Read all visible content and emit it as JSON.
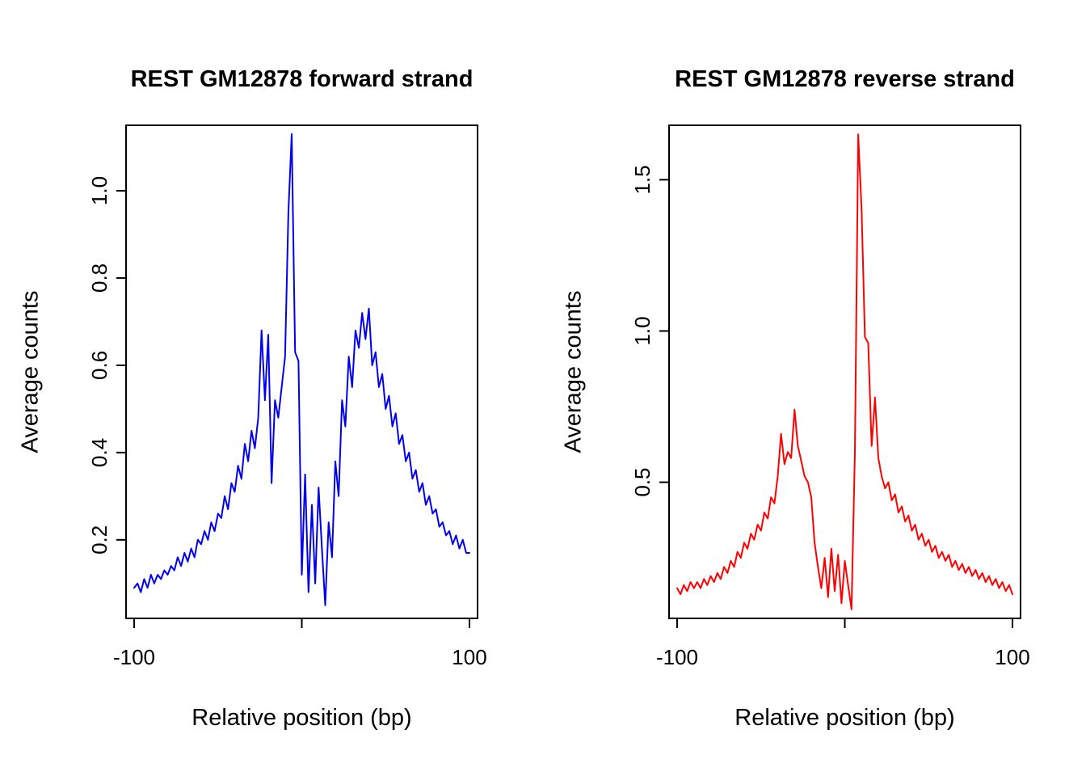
{
  "figure": {
    "background": "#ffffff",
    "axis_color": "#000000"
  },
  "chart_data": [
    {
      "type": "line",
      "title": "REST GM12878 forward strand",
      "xlabel": "Relative position (bp)",
      "ylabel": "Average counts",
      "color": "#0000EE",
      "line_width": 2,
      "xlim": [
        -100,
        100
      ],
      "ylim": [
        0.02,
        1.15
      ],
      "xticks": {
        "values": [
          -100,
          0,
          100
        ],
        "labels": [
          "-100",
          "",
          "100"
        ]
      },
      "yticks": {
        "values": [
          0.2,
          0.4,
          0.6,
          0.8,
          1.0
        ],
        "labels": [
          "0.2",
          "0.4",
          "0.6",
          "0.8",
          "1.0"
        ]
      },
      "grid": false,
      "x": [
        -100,
        -98,
        -96,
        -94,
        -92,
        -90,
        -88,
        -86,
        -84,
        -82,
        -80,
        -78,
        -76,
        -74,
        -72,
        -70,
        -68,
        -66,
        -64,
        -62,
        -60,
        -58,
        -56,
        -54,
        -52,
        -50,
        -48,
        -46,
        -44,
        -42,
        -40,
        -38,
        -36,
        -34,
        -32,
        -30,
        -28,
        -26,
        -24,
        -22,
        -20,
        -18,
        -16,
        -14,
        -12,
        -10,
        -8,
        -6,
        -4,
        -2,
        0,
        2,
        4,
        6,
        8,
        10,
        12,
        14,
        16,
        18,
        20,
        22,
        24,
        26,
        28,
        30,
        32,
        34,
        36,
        38,
        40,
        42,
        44,
        46,
        48,
        50,
        52,
        54,
        56,
        58,
        60,
        62,
        64,
        66,
        68,
        70,
        72,
        74,
        76,
        78,
        80,
        82,
        84,
        86,
        88,
        90,
        92,
        94,
        96,
        98,
        100
      ],
      "values": [
        0.09,
        0.1,
        0.08,
        0.11,
        0.09,
        0.12,
        0.1,
        0.12,
        0.11,
        0.13,
        0.12,
        0.14,
        0.13,
        0.16,
        0.14,
        0.17,
        0.15,
        0.18,
        0.16,
        0.2,
        0.19,
        0.22,
        0.2,
        0.24,
        0.22,
        0.26,
        0.25,
        0.3,
        0.27,
        0.33,
        0.31,
        0.37,
        0.34,
        0.42,
        0.38,
        0.45,
        0.41,
        0.48,
        0.68,
        0.52,
        0.67,
        0.33,
        0.52,
        0.48,
        0.55,
        0.62,
        0.95,
        1.13,
        0.63,
        0.61,
        0.12,
        0.35,
        0.08,
        0.28,
        0.1,
        0.32,
        0.18,
        0.05,
        0.24,
        0.16,
        0.38,
        0.3,
        0.52,
        0.46,
        0.62,
        0.55,
        0.68,
        0.64,
        0.72,
        0.66,
        0.73,
        0.6,
        0.63,
        0.55,
        0.58,
        0.5,
        0.53,
        0.46,
        0.49,
        0.42,
        0.44,
        0.38,
        0.4,
        0.34,
        0.36,
        0.31,
        0.33,
        0.28,
        0.3,
        0.26,
        0.27,
        0.23,
        0.24,
        0.21,
        0.22,
        0.19,
        0.21,
        0.18,
        0.2,
        0.17,
        0.17
      ]
    },
    {
      "type": "line",
      "title": "REST GM12878 reverse strand",
      "xlabel": "Relative position (bp)",
      "ylabel": "Average counts",
      "color": "#FF0000",
      "line_width": 2,
      "xlim": [
        -100,
        100
      ],
      "ylim": [
        0.05,
        1.68
      ],
      "xticks": {
        "values": [
          -100,
          0,
          100
        ],
        "labels": [
          "-100",
          "",
          "100"
        ]
      },
      "yticks": {
        "values": [
          0.5,
          1.0,
          1.5
        ],
        "labels": [
          "0.5",
          "1.0",
          "1.5"
        ]
      },
      "grid": false,
      "x": [
        -100,
        -98,
        -96,
        -94,
        -92,
        -90,
        -88,
        -86,
        -84,
        -82,
        -80,
        -78,
        -76,
        -74,
        -72,
        -70,
        -68,
        -66,
        -64,
        -62,
        -60,
        -58,
        -56,
        -54,
        -52,
        -50,
        -48,
        -46,
        -44,
        -42,
        -40,
        -38,
        -36,
        -34,
        -32,
        -30,
        -28,
        -26,
        -24,
        -22,
        -20,
        -18,
        -16,
        -14,
        -12,
        -10,
        -8,
        -6,
        -4,
        -2,
        0,
        2,
        4,
        6,
        8,
        10,
        12,
        14,
        16,
        18,
        20,
        22,
        24,
        26,
        28,
        30,
        32,
        34,
        36,
        38,
        40,
        42,
        44,
        46,
        48,
        50,
        52,
        54,
        56,
        58,
        60,
        62,
        64,
        66,
        68,
        70,
        72,
        74,
        76,
        78,
        80,
        82,
        84,
        86,
        88,
        90,
        92,
        94,
        96,
        98,
        100
      ],
      "values": [
        0.15,
        0.13,
        0.16,
        0.14,
        0.17,
        0.15,
        0.17,
        0.15,
        0.18,
        0.16,
        0.19,
        0.17,
        0.2,
        0.18,
        0.22,
        0.2,
        0.24,
        0.22,
        0.27,
        0.25,
        0.3,
        0.28,
        0.33,
        0.31,
        0.36,
        0.34,
        0.4,
        0.38,
        0.45,
        0.43,
        0.52,
        0.66,
        0.56,
        0.6,
        0.58,
        0.74,
        0.62,
        0.57,
        0.52,
        0.5,
        0.45,
        0.3,
        0.22,
        0.15,
        0.25,
        0.12,
        0.28,
        0.14,
        0.26,
        0.1,
        0.24,
        0.16,
        0.08,
        0.6,
        1.65,
        1.4,
        0.98,
        0.96,
        0.62,
        0.78,
        0.58,
        0.52,
        0.48,
        0.5,
        0.44,
        0.46,
        0.4,
        0.42,
        0.37,
        0.39,
        0.34,
        0.36,
        0.31,
        0.33,
        0.29,
        0.31,
        0.27,
        0.29,
        0.25,
        0.27,
        0.24,
        0.26,
        0.22,
        0.24,
        0.21,
        0.23,
        0.2,
        0.22,
        0.19,
        0.21,
        0.18,
        0.2,
        0.17,
        0.19,
        0.16,
        0.18,
        0.15,
        0.17,
        0.14,
        0.16,
        0.13
      ]
    }
  ]
}
